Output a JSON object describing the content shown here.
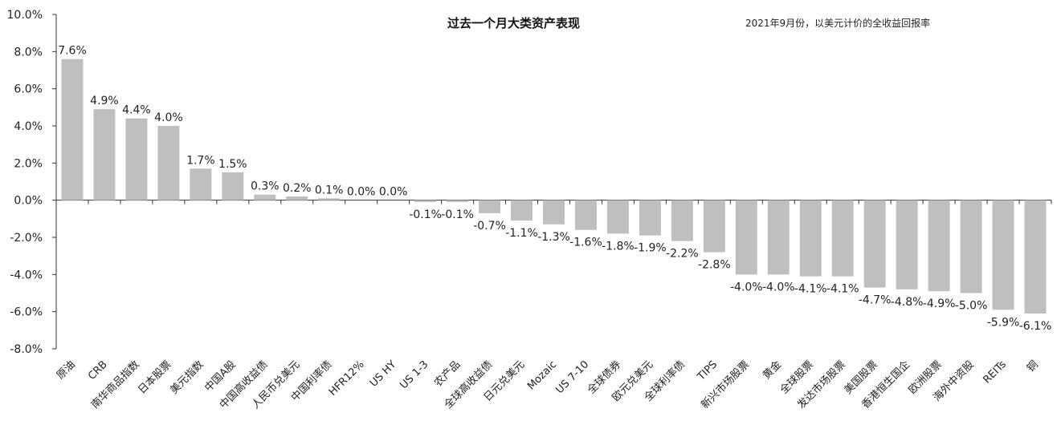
{
  "chart_data": {
    "type": "bar",
    "title": "过去一个月大类资产表现",
    "subtitle": "2021年9月份，以美元计价的全收益回报率",
    "xlabel": "",
    "ylabel": "",
    "ylim": [
      -8,
      10
    ],
    "yticks": [
      10,
      8,
      6,
      4,
      2,
      0,
      -2,
      -4,
      -6,
      -8
    ],
    "ytick_labels": [
      "10.0%",
      "8.0%",
      "6.0%",
      "4.0%",
      "2.0%",
      "0.0%",
      "-2.0%",
      "-4.0%",
      "-6.0%",
      "-8.0%"
    ],
    "grid": false,
    "bar_color": "#bfbfbf",
    "categories": [
      "原油",
      "CRB",
      "南华商品指数",
      "日本股票",
      "美元指数",
      "中国A股",
      "中国高收益债",
      "人民币兑美元",
      "中国利率债",
      "HFR12%",
      "US HY",
      "US 1-3",
      "农产品",
      "全球高收益债",
      "日元兑美元",
      "Mozaic",
      "US 7-10",
      "全球债券",
      "欧元兑美元",
      "全球利率债",
      "TIPS",
      "新兴市场股票",
      "黄金",
      "全球股票",
      "发达市场股票",
      "美国股票",
      "香港恒生国企",
      "欧洲股票",
      "海外中资股",
      "REITs",
      "铜"
    ],
    "values": [
      7.6,
      4.9,
      4.4,
      4.0,
      1.7,
      1.5,
      0.3,
      0.2,
      0.1,
      0.0,
      0.0,
      -0.1,
      -0.1,
      -0.7,
      -1.1,
      -1.3,
      -1.6,
      -1.8,
      -1.9,
      -2.2,
      -2.8,
      -4.0,
      -4.0,
      -4.1,
      -4.1,
      -4.7,
      -4.8,
      -4.9,
      -5.0,
      -5.9,
      -6.1
    ],
    "labels": [
      "7.6%",
      "4.9%",
      "4.4%",
      "4.0%",
      "1.7%",
      "1.5%",
      "0.3%",
      "0.2%",
      "0.1%",
      "0.0%",
      "0.0%",
      "-0.1%",
      "-0.1%",
      "-0.7%",
      "-1.1%",
      "-1.3%",
      "-1.6%",
      "-1.8%",
      "-1.9%",
      "-2.2%",
      "-2.8%",
      "-4.0%",
      "-4.0%",
      "-4.1%",
      "-4.1%",
      "-4.7%",
      "-4.8%",
      "-4.9%",
      "-5.0%",
      "-5.9%",
      "-6.1%"
    ]
  }
}
